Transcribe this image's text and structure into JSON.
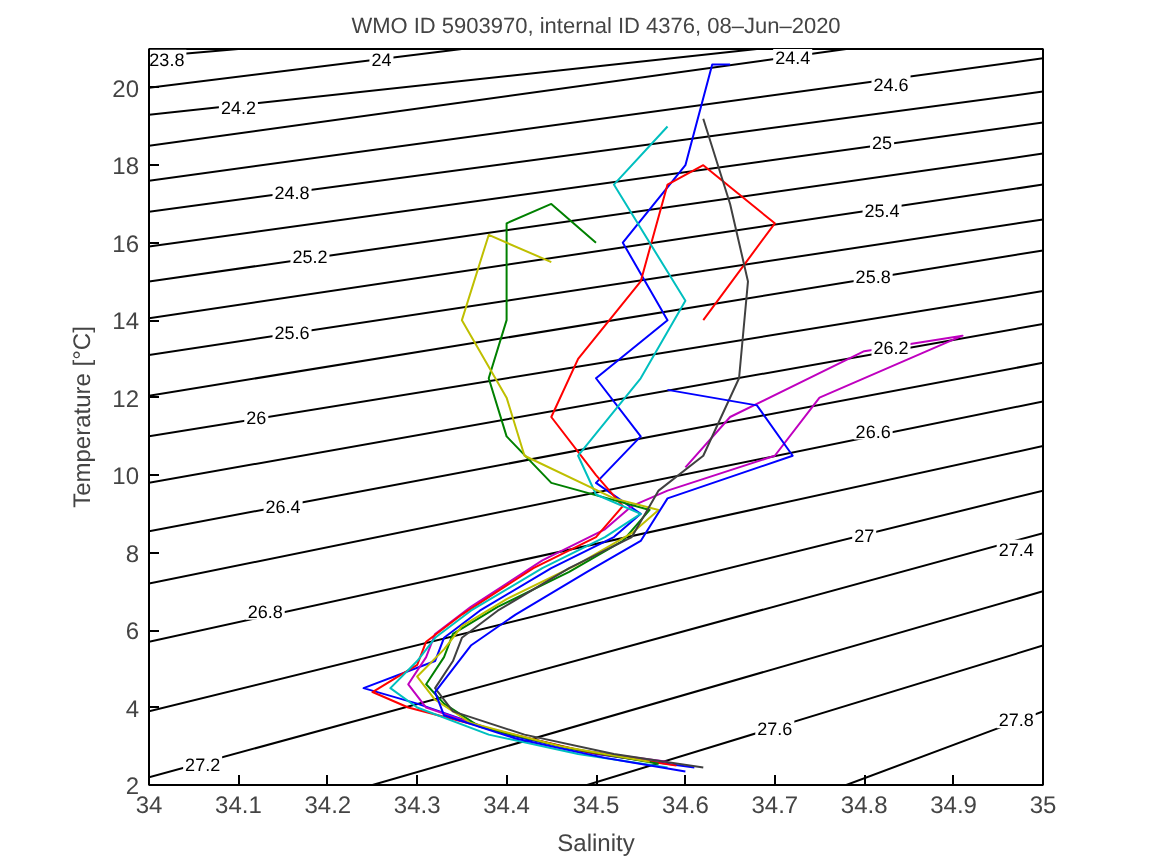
{
  "chart_data": {
    "type": "line",
    "title": "WMO ID 5903970, internal ID 4376, 08–Jun–2020",
    "xlabel": "Salinity",
    "ylabel": "Temperature [°C]",
    "xlim": [
      34,
      35
    ],
    "ylim": [
      2,
      21
    ],
    "xticks": [
      34,
      34.1,
      34.2,
      34.3,
      34.4,
      34.5,
      34.6,
      34.7,
      34.8,
      34.9,
      35
    ],
    "yticks": [
      2,
      4,
      6,
      8,
      10,
      12,
      14,
      16,
      18,
      20
    ],
    "series": [
      {
        "color": "#000000",
        "x": [
          34,
          34.1
        ],
        "values": [
          20.8,
          21
        ]
      },
      {
        "color": "#000000",
        "x": [
          34,
          34.35
        ],
        "values": [
          20.0,
          21
        ]
      },
      {
        "color": "#000000",
        "x": [
          34,
          34.68
        ],
        "values": [
          19.3,
          21
        ]
      },
      {
        "color": "#000000",
        "x": [
          34,
          34.78
        ],
        "values": [
          18.5,
          21
        ]
      },
      {
        "color": "#000000",
        "x": [
          34,
          35
        ],
        "values": [
          17.6,
          20.76
        ]
      },
      {
        "color": "#000000",
        "x": [
          34,
          35
        ],
        "values": [
          16.8,
          19.9
        ]
      },
      {
        "color": "#000000",
        "x": [
          34,
          35
        ],
        "values": [
          15.9,
          19.1
        ]
      },
      {
        "color": "#000000",
        "x": [
          34,
          35
        ],
        "values": [
          15.0,
          18.3
        ]
      },
      {
        "color": "#000000",
        "x": [
          34,
          35
        ],
        "values": [
          14.05,
          17.5
        ]
      },
      {
        "color": "#000000",
        "x": [
          34,
          35
        ],
        "values": [
          13.1,
          16.6
        ]
      },
      {
        "color": "#000000",
        "x": [
          34,
          35
        ],
        "values": [
          12.05,
          15.8
        ]
      },
      {
        "color": "#000000",
        "x": [
          34,
          35
        ],
        "values": [
          11.0,
          14.75
        ]
      },
      {
        "color": "#000000",
        "x": [
          34,
          35
        ],
        "values": [
          9.8,
          13.9
        ]
      },
      {
        "color": "#000000",
        "x": [
          34,
          35
        ],
        "values": [
          8.55,
          12.9
        ]
      },
      {
        "color": "#000000",
        "x": [
          34,
          35
        ],
        "values": [
          7.2,
          11.9
        ]
      },
      {
        "color": "#000000",
        "x": [
          34,
          35
        ],
        "values": [
          5.7,
          10.75
        ]
      },
      {
        "color": "#000000",
        "x": [
          34,
          35
        ],
        "values": [
          3.9,
          9.6
        ]
      },
      {
        "color": "#000000",
        "x": [
          34,
          35
        ],
        "values": [
          2.2,
          8.5
        ]
      },
      {
        "color": "#000000",
        "x": [
          34.25,
          35
        ],
        "values": [
          2,
          7.0
        ]
      },
      {
        "color": "#000000",
        "x": [
          34.49,
          35
        ],
        "values": [
          2,
          5.6
        ]
      },
      {
        "color": "#000000",
        "x": [
          34.78,
          35
        ],
        "values": [
          2,
          3.9
        ]
      },
      {
        "color": "#0000ff",
        "x": [
          34.61,
          34.5,
          34.4,
          34.3,
          34.24,
          34.32,
          34.33,
          34.37,
          34.45,
          34.52,
          34.55,
          34.5,
          34.55,
          34.5,
          34.58,
          34.53,
          34.6,
          34.63,
          34.65
        ],
        "values": [
          2.45,
          2.8,
          3.3,
          4.1,
          4.5,
          5.2,
          5.8,
          6.5,
          7.6,
          8.4,
          9.0,
          9.8,
          11,
          12.5,
          14,
          16,
          18,
          20.6,
          20.6
        ]
      },
      {
        "color": "#bf00bf",
        "x": [
          34.58,
          34.48,
          34.38,
          34.31,
          34.29,
          34.31,
          34.32,
          34.36,
          34.44,
          34.51,
          34.54,
          34.58,
          34.7,
          34.75,
          34.91,
          34.8,
          34.65,
          34.6
        ],
        "values": [
          2.6,
          2.9,
          3.45,
          4.0,
          4.6,
          5.3,
          5.9,
          6.6,
          7.8,
          8.6,
          9.2,
          9.6,
          10.5,
          12,
          13.6,
          13.2,
          11.5,
          10.2
        ]
      },
      {
        "color": "#ff0000",
        "x": [
          34.59,
          34.49,
          34.39,
          34.29,
          34.25,
          34.3,
          34.31,
          34.35,
          34.43,
          34.5,
          34.53,
          34.5,
          34.45,
          34.48,
          34.55,
          34.58,
          34.62,
          34.7,
          34.62
        ],
        "values": [
          2.5,
          2.85,
          3.4,
          4.0,
          4.4,
          5.1,
          5.7,
          6.4,
          7.6,
          8.4,
          9.2,
          10,
          11.5,
          13,
          15,
          17.5,
          18,
          16.5,
          14
        ]
      },
      {
        "color": "#008000",
        "x": [
          34.57,
          34.47,
          34.37,
          34.33,
          34.31,
          34.33,
          34.34,
          34.39,
          34.47,
          34.53,
          34.56,
          34.45,
          34.4,
          34.38,
          34.4,
          34.4,
          34.45,
          34.5
        ],
        "values": [
          2.55,
          2.95,
          3.5,
          4.1,
          4.6,
          5.3,
          5.9,
          6.6,
          7.5,
          8.3,
          9.1,
          9.8,
          11,
          12.5,
          14,
          16.5,
          17,
          16
        ]
      },
      {
        "color": "#00bfbf",
        "x": [
          34.58,
          34.48,
          34.38,
          34.3,
          34.27,
          34.3,
          34.32,
          34.36,
          34.44,
          34.51,
          34.55,
          34.5,
          34.48,
          34.55,
          34.6,
          34.52,
          34.58
        ],
        "values": [
          2.45,
          2.8,
          3.3,
          4.0,
          4.5,
          5.2,
          5.8,
          6.5,
          7.6,
          8.4,
          9.0,
          9.5,
          10.5,
          12.5,
          14.5,
          17.5,
          19
        ]
      },
      {
        "color": "#bfbf00",
        "x": [
          34.56,
          34.46,
          34.36,
          34.32,
          34.3,
          34.33,
          34.35,
          34.4,
          34.48,
          34.54,
          34.57,
          34.52,
          34.42,
          34.4,
          34.35,
          34.38,
          34.45
        ],
        "values": [
          2.6,
          3.0,
          3.6,
          4.2,
          4.8,
          5.5,
          6.1,
          6.8,
          7.7,
          8.5,
          9.1,
          9.4,
          10.5,
          12,
          14,
          16.2,
          15.5
        ]
      },
      {
        "color": "#404040",
        "x": [
          34.62,
          34.52,
          34.42,
          34.34,
          34.32,
          34.34,
          34.35,
          34.39,
          34.47,
          34.54,
          34.57,
          34.62,
          34.66,
          34.67,
          34.65,
          34.62
        ],
        "values": [
          2.45,
          2.8,
          3.3,
          3.9,
          4.5,
          5.2,
          5.8,
          6.5,
          7.6,
          8.4,
          9.6,
          10.5,
          12.5,
          15,
          17,
          19.2
        ]
      },
      {
        "color": "#0000ff",
        "x": [
          34.6,
          34.51,
          34.41,
          34.33,
          34.32,
          34.34,
          34.36,
          34.41,
          34.49,
          34.55,
          34.58,
          34.72,
          34.68,
          34.58
        ],
        "values": [
          2.35,
          2.7,
          3.2,
          3.8,
          4.4,
          5.0,
          5.6,
          6.4,
          7.5,
          8.3,
          9.4,
          10.5,
          11.8,
          12.2
        ]
      }
    ],
    "annotations": [
      {
        "text": "23.8",
        "x": 34.02,
        "y": 20.75
      },
      {
        "text": "24",
        "x": 34.26,
        "y": 20.74
      },
      {
        "text": "24.2",
        "x": 34.1,
        "y": 19.5
      },
      {
        "text": "24.4",
        "x": 34.72,
        "y": 20.8
      },
      {
        "text": "24.6",
        "x": 34.83,
        "y": 20.1
      },
      {
        "text": "24.8",
        "x": 34.16,
        "y": 17.3
      },
      {
        "text": "25",
        "x": 34.82,
        "y": 18.6
      },
      {
        "text": "25.2",
        "x": 34.18,
        "y": 15.65
      },
      {
        "text": "25.4",
        "x": 34.82,
        "y": 16.85
      },
      {
        "text": "25.6",
        "x": 34.16,
        "y": 13.7
      },
      {
        "text": "25.8",
        "x": 34.81,
        "y": 15.15
      },
      {
        "text": "26",
        "x": 34.12,
        "y": 11.5
      },
      {
        "text": "26.2",
        "x": 34.83,
        "y": 13.3
      },
      {
        "text": "26.4",
        "x": 34.15,
        "y": 9.2
      },
      {
        "text": "26.6",
        "x": 34.81,
        "y": 11.15
      },
      {
        "text": "26.8",
        "x": 34.13,
        "y": 6.5
      },
      {
        "text": "27",
        "x": 34.8,
        "y": 8.46
      },
      {
        "text": "27.2",
        "x": 34.06,
        "y": 2.55
      },
      {
        "text": "27.4",
        "x": 34.97,
        "y": 8.1
      },
      {
        "text": "27.6",
        "x": 34.7,
        "y": 3.48
      },
      {
        "text": "27.8",
        "x": 34.97,
        "y": 3.7
      }
    ]
  }
}
